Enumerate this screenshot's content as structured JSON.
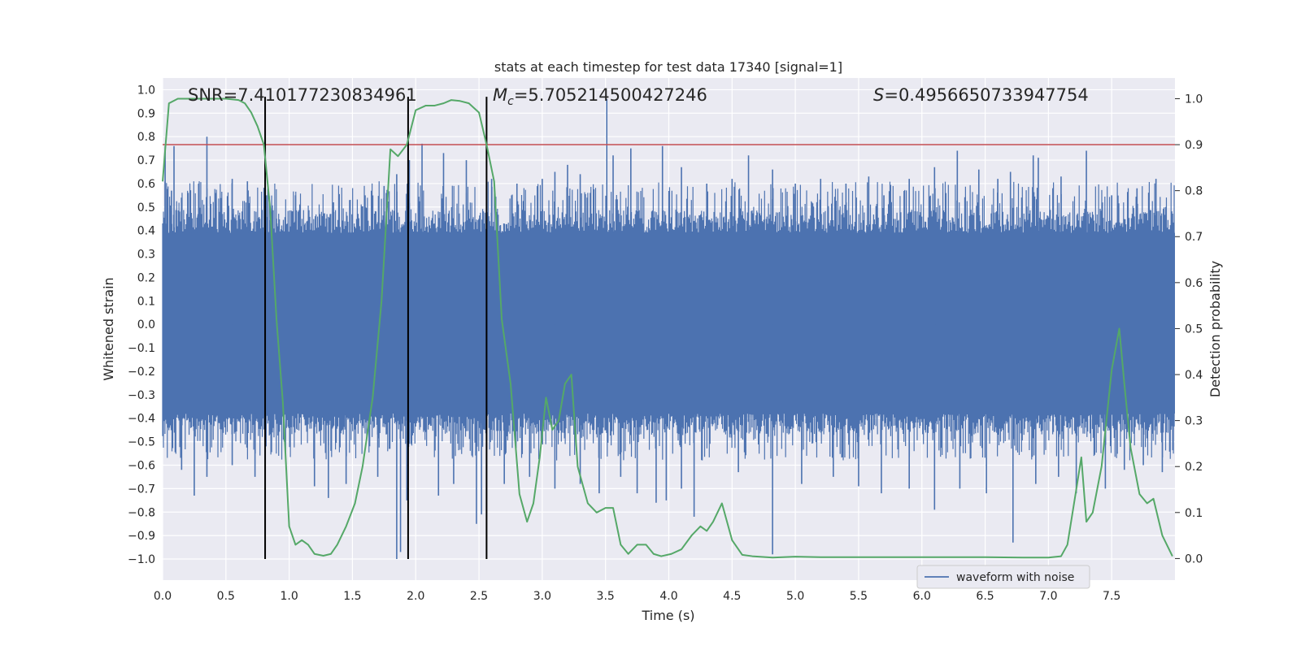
{
  "chart_data": {
    "type": "line",
    "title": "stats at each timestep for test data 17340 [signal=1]",
    "xlabel": "Time (s)",
    "ylabel_left": "Whitened strain",
    "ylabel_right": "Detection probability",
    "xlim": [
      0,
      8.0
    ],
    "ylim_left": [
      -1.09,
      1.05
    ],
    "ylim_right": [
      -0.047,
      1.045
    ],
    "x_ticks": [
      0.0,
      0.5,
      1.0,
      1.5,
      2.0,
      2.5,
      3.0,
      3.5,
      4.0,
      4.5,
      5.0,
      5.5,
      6.0,
      6.5,
      7.0,
      7.5
    ],
    "x_tick_labels": [
      "0.0",
      "0.5",
      "1.0",
      "1.5",
      "2.0",
      "2.5",
      "3.0",
      "3.5",
      "4.0",
      "4.5",
      "5.0",
      "5.5",
      "6.0",
      "6.5",
      "7.0",
      "7.5"
    ],
    "y_left_ticks": [
      1.0,
      0.9,
      0.8,
      0.7,
      0.6,
      0.5,
      0.4,
      0.3,
      0.2,
      0.1,
      0.0,
      -0.1,
      -0.2,
      -0.3,
      -0.4,
      -0.5,
      -0.6,
      -0.7,
      -0.8,
      -0.9,
      -1.0
    ],
    "y_left_tick_labels": [
      "1.0",
      "0.9",
      "0.8",
      "0.7",
      "0.6",
      "0.5",
      "0.4",
      "0.3",
      "0.2",
      "0.1",
      "0.0",
      "−0.1",
      "−0.2",
      "−0.3",
      "−0.4",
      "−0.5",
      "−0.6",
      "−0.7",
      "−0.8",
      "−0.9",
      "−1.0"
    ],
    "y_right_ticks": [
      1.0,
      0.9,
      0.8,
      0.7,
      0.6,
      0.5,
      0.4,
      0.3,
      0.2,
      0.1,
      0.0
    ],
    "y_right_tick_labels": [
      "1.0",
      "0.9",
      "0.8",
      "0.7",
      "0.6",
      "0.5",
      "0.4",
      "0.3",
      "0.2",
      "0.1",
      "0.0"
    ],
    "annotations": {
      "snr": "SNR=7.410177230834961",
      "mc": "=5.705214500427246",
      "mc_symbol": "M",
      "mc_sub": "c",
      "s": "=0.4956650733947754",
      "s_symbol": "S"
    },
    "legend": [
      "waveform with noise"
    ],
    "threshold": {
      "value": 0.9,
      "axis": "right",
      "color": "#c44e52"
    },
    "vertical_lines": [
      0.81,
      1.94,
      2.56
    ],
    "vertical_line_range": [
      -1.0,
      0.97
    ],
    "waveform": {
      "name": "waveform with noise",
      "color": "#4c72b0",
      "core_band": [
        -0.38,
        0.39
      ],
      "positive_spikes": [
        [
          0.02,
          0.76
        ],
        [
          0.07,
          0.57
        ],
        [
          0.09,
          0.76
        ],
        [
          0.22,
          0.57
        ],
        [
          0.28,
          0.47
        ],
        [
          0.35,
          0.8
        ],
        [
          0.42,
          0.56
        ],
        [
          0.55,
          0.62
        ],
        [
          0.67,
          0.61
        ],
        [
          0.82,
          0.55
        ],
        [
          0.9,
          0.45
        ],
        [
          1.05,
          0.55
        ],
        [
          1.35,
          0.52
        ],
        [
          1.6,
          0.55
        ],
        [
          1.75,
          0.59
        ],
        [
          1.85,
          0.64
        ],
        [
          1.95,
          0.7
        ],
        [
          2.05,
          0.77
        ],
        [
          2.22,
          0.73
        ],
        [
          2.4,
          0.7
        ],
        [
          2.6,
          0.62
        ],
        [
          2.8,
          0.6
        ],
        [
          3.0,
          0.62
        ],
        [
          3.1,
          0.65
        ],
        [
          3.2,
          0.68
        ],
        [
          3.3,
          0.64
        ],
        [
          3.51,
          0.96
        ],
        [
          3.56,
          0.72
        ],
        [
          3.7,
          0.75
        ],
        [
          3.95,
          0.76
        ],
        [
          4.1,
          0.67
        ],
        [
          4.3,
          0.6
        ],
        [
          4.5,
          0.62
        ],
        [
          4.63,
          0.72
        ],
        [
          4.82,
          0.66
        ],
        [
          5.0,
          0.6
        ],
        [
          5.2,
          0.62
        ],
        [
          5.4,
          0.6
        ],
        [
          5.58,
          0.63
        ],
        [
          5.7,
          0.55
        ],
        [
          5.9,
          0.62
        ],
        [
          6.1,
          0.67
        ],
        [
          6.28,
          0.74
        ],
        [
          6.45,
          0.66
        ],
        [
          6.6,
          0.62
        ],
        [
          6.7,
          0.65
        ],
        [
          6.88,
          0.72
        ],
        [
          6.92,
          0.71
        ],
        [
          7.1,
          0.63
        ],
        [
          7.3,
          0.74
        ],
        [
          7.5,
          0.55
        ],
        [
          7.7,
          0.58
        ],
        [
          7.85,
          0.62
        ]
      ],
      "negative_spikes": [
        [
          0.15,
          -0.62
        ],
        [
          0.25,
          -0.73
        ],
        [
          0.35,
          -0.65
        ],
        [
          0.55,
          -0.6
        ],
        [
          0.73,
          -0.65
        ],
        [
          1.2,
          -0.69
        ],
        [
          1.31,
          -0.74
        ],
        [
          1.45,
          -0.68
        ],
        [
          1.7,
          -0.65
        ],
        [
          1.85,
          -1.0
        ],
        [
          1.88,
          -0.97
        ],
        [
          1.93,
          -0.75
        ],
        [
          2.18,
          -0.73
        ],
        [
          2.3,
          -0.68
        ],
        [
          2.48,
          -0.85
        ],
        [
          2.52,
          -0.81
        ],
        [
          2.7,
          -0.68
        ],
        [
          2.9,
          -0.65
        ],
        [
          3.1,
          -0.7
        ],
        [
          3.3,
          -0.68
        ],
        [
          3.45,
          -0.72
        ],
        [
          3.62,
          -0.65
        ],
        [
          3.75,
          -0.72
        ],
        [
          3.9,
          -0.76
        ],
        [
          3.98,
          -0.75
        ],
        [
          4.1,
          -0.7
        ],
        [
          4.2,
          -0.82
        ],
        [
          4.55,
          -0.63
        ],
        [
          4.82,
          -0.98
        ],
        [
          5.05,
          -0.68
        ],
        [
          5.3,
          -0.65
        ],
        [
          5.5,
          -0.69
        ],
        [
          5.68,
          -0.72
        ],
        [
          5.9,
          -0.7
        ],
        [
          6.1,
          -0.79
        ],
        [
          6.3,
          -0.7
        ],
        [
          6.51,
          -0.72
        ],
        [
          6.72,
          -0.93
        ],
        [
          6.9,
          -0.68
        ],
        [
          7.08,
          -0.65
        ],
        [
          7.22,
          -0.72
        ],
        [
          7.45,
          -0.7
        ],
        [
          7.6,
          -0.62
        ],
        [
          7.75,
          -0.6
        ],
        [
          7.9,
          -0.63
        ]
      ]
    },
    "probability": {
      "name": "detection probability",
      "color": "#55a868",
      "x": [
        0.0,
        0.05,
        0.12,
        0.2,
        0.3,
        0.4,
        0.5,
        0.6,
        0.65,
        0.7,
        0.75,
        0.8,
        0.85,
        0.9,
        0.95,
        1.0,
        1.05,
        1.1,
        1.15,
        1.2,
        1.27,
        1.33,
        1.38,
        1.45,
        1.52,
        1.58,
        1.66,
        1.73,
        1.8,
        1.86,
        1.93,
        2.0,
        2.08,
        2.15,
        2.22,
        2.28,
        2.35,
        2.42,
        2.5,
        2.56,
        2.62,
        2.68,
        2.75,
        2.82,
        2.88,
        2.93,
        2.98,
        3.03,
        3.08,
        3.13,
        3.18,
        3.23,
        3.28,
        3.36,
        3.43,
        3.5,
        3.56,
        3.62,
        3.68,
        3.75,
        3.82,
        3.88,
        3.94,
        4.02,
        4.1,
        4.18,
        4.25,
        4.3,
        4.35,
        4.42,
        4.5,
        4.58,
        4.66,
        4.82,
        5.0,
        5.2,
        5.5,
        5.8,
        6.0,
        6.2,
        6.5,
        6.8,
        7.0,
        7.1,
        7.15,
        7.22,
        7.26,
        7.3,
        7.35,
        7.42,
        7.5,
        7.56,
        7.6,
        7.65,
        7.72,
        7.78,
        7.83,
        7.9,
        7.98
      ],
      "y": [
        0.82,
        0.99,
        1.0,
        1.0,
        1.0,
        1.0,
        1.0,
        0.997,
        0.99,
        0.97,
        0.94,
        0.9,
        0.76,
        0.52,
        0.34,
        0.07,
        0.03,
        0.04,
        0.03,
        0.01,
        0.006,
        0.01,
        0.03,
        0.07,
        0.12,
        0.2,
        0.35,
        0.56,
        0.89,
        0.875,
        0.9,
        0.975,
        0.985,
        0.985,
        0.99,
        0.997,
        0.995,
        0.99,
        0.97,
        0.9,
        0.82,
        0.52,
        0.38,
        0.14,
        0.08,
        0.12,
        0.22,
        0.35,
        0.28,
        0.3,
        0.38,
        0.4,
        0.2,
        0.12,
        0.1,
        0.11,
        0.11,
        0.03,
        0.01,
        0.03,
        0.03,
        0.01,
        0.005,
        0.01,
        0.02,
        0.05,
        0.07,
        0.06,
        0.08,
        0.12,
        0.04,
        0.008,
        0.005,
        0.002,
        0.004,
        0.003,
        0.003,
        0.003,
        0.003,
        0.003,
        0.003,
        0.002,
        0.002,
        0.005,
        0.03,
        0.15,
        0.22,
        0.08,
        0.1,
        0.2,
        0.41,
        0.5,
        0.38,
        0.24,
        0.14,
        0.12,
        0.13,
        0.05,
        0.005
      ]
    }
  }
}
